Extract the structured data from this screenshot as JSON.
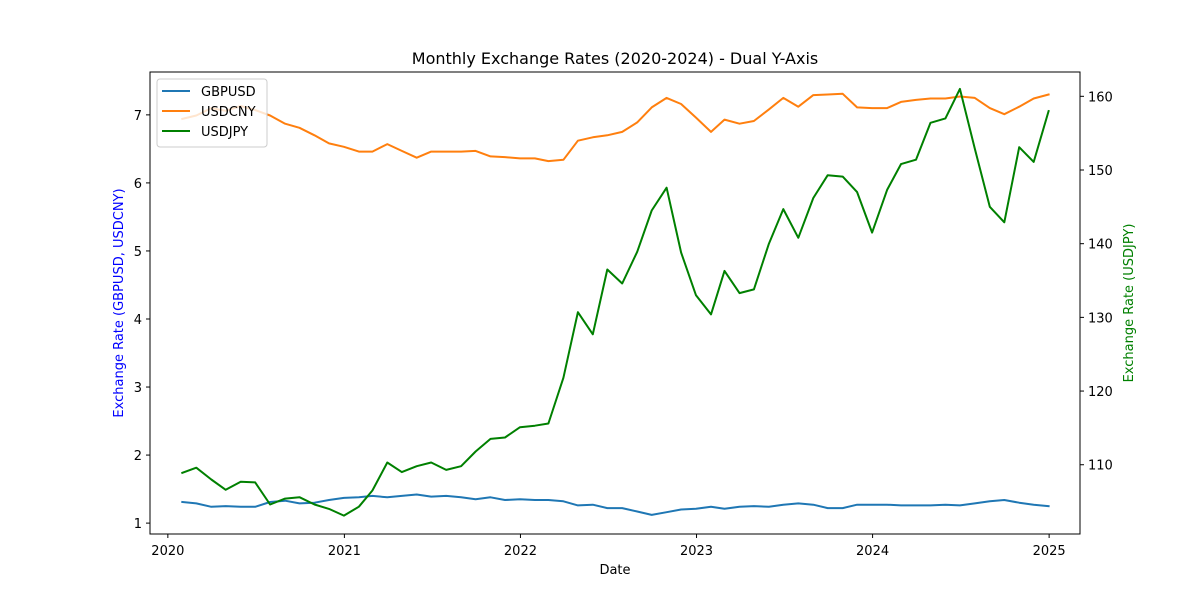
{
  "chart_data": {
    "type": "line",
    "title": "Monthly Exchange Rates (2020-2024) - Dual Y-Axis",
    "xlabel": "Date",
    "ylabel_left": "Exchange Rate (GBPUSD, USDCNY)",
    "ylabel_right": "Exchange Rate (USDJPY)",
    "ylabel_left_color": "#0000ff",
    "ylabel_right_color": "#008000",
    "x_ticks": [
      "2020",
      "2021",
      "2022",
      "2023",
      "2024",
      "2025"
    ],
    "y_left_ticks": [
      1,
      2,
      3,
      4,
      5,
      6,
      7
    ],
    "y_right_ticks": [
      110,
      120,
      130,
      140,
      150,
      160
    ],
    "y_left_lim": [
      0.84,
      7.63
    ],
    "y_right_lim": [
      100.6,
      163.3
    ],
    "legend_position": "top-left",
    "x": [
      "2020-01-31",
      "2020-02-29",
      "2020-03-31",
      "2020-04-30",
      "2020-05-31",
      "2020-06-30",
      "2020-07-31",
      "2020-08-31",
      "2020-09-30",
      "2020-10-31",
      "2020-11-30",
      "2020-12-31",
      "2021-01-31",
      "2021-02-28",
      "2021-03-31",
      "2021-04-30",
      "2021-05-31",
      "2021-06-30",
      "2021-07-31",
      "2021-08-31",
      "2021-09-30",
      "2021-10-31",
      "2021-11-30",
      "2021-12-31",
      "2022-01-31",
      "2022-02-28",
      "2022-03-31",
      "2022-04-30",
      "2022-05-31",
      "2022-06-30",
      "2022-07-31",
      "2022-08-31",
      "2022-09-30",
      "2022-10-31",
      "2022-11-30",
      "2022-12-31",
      "2023-01-31",
      "2023-02-28",
      "2023-03-31",
      "2023-04-30",
      "2023-05-31",
      "2023-06-30",
      "2023-07-31",
      "2023-08-31",
      "2023-09-30",
      "2023-10-31",
      "2023-11-30",
      "2023-12-31",
      "2024-01-31",
      "2024-02-29",
      "2024-03-31",
      "2024-04-30",
      "2024-05-31",
      "2024-06-30",
      "2024-07-31",
      "2024-08-31",
      "2024-09-30",
      "2024-10-31",
      "2024-11-30",
      "2024-12-31"
    ],
    "series": [
      {
        "name": "GBPUSD",
        "axis": "left",
        "color": "#1f77b4",
        "values": [
          1.31,
          1.29,
          1.24,
          1.25,
          1.24,
          1.24,
          1.31,
          1.33,
          1.29,
          1.3,
          1.34,
          1.37,
          1.38,
          1.4,
          1.38,
          1.4,
          1.42,
          1.39,
          1.4,
          1.38,
          1.35,
          1.38,
          1.34,
          1.35,
          1.34,
          1.34,
          1.32,
          1.26,
          1.27,
          1.22,
          1.22,
          1.17,
          1.12,
          1.16,
          1.2,
          1.21,
          1.24,
          1.21,
          1.24,
          1.25,
          1.24,
          1.27,
          1.29,
          1.27,
          1.22,
          1.22,
          1.27,
          1.27,
          1.27,
          1.26,
          1.26,
          1.26,
          1.27,
          1.26,
          1.29,
          1.32,
          1.34,
          1.3,
          1.27,
          1.25
        ]
      },
      {
        "name": "USDCNY",
        "axis": "left",
        "color": "#ff7f0e",
        "values": [
          6.94,
          6.99,
          7.1,
          7.06,
          7.13,
          7.07,
          6.99,
          6.87,
          6.81,
          6.7,
          6.58,
          6.53,
          6.46,
          6.46,
          6.57,
          6.47,
          6.37,
          6.46,
          6.46,
          6.46,
          6.47,
          6.39,
          6.38,
          6.36,
          6.36,
          6.32,
          6.34,
          6.62,
          6.67,
          6.7,
          6.75,
          6.89,
          7.11,
          7.25,
          7.16,
          6.96,
          6.75,
          6.93,
          6.87,
          6.91,
          7.08,
          7.25,
          7.12,
          7.29,
          7.3,
          7.31,
          7.11,
          7.1,
          7.1,
          7.19,
          7.22,
          7.24,
          7.24,
          7.27,
          7.25,
          7.1,
          7.01,
          7.12,
          7.24,
          7.3
        ]
      },
      {
        "name": "USDJPY",
        "axis": "right",
        "color": "#008000",
        "values": [
          108.9,
          109.6,
          108.0,
          106.6,
          107.7,
          107.6,
          104.6,
          105.4,
          105.6,
          104.6,
          104.0,
          103.1,
          104.3,
          106.5,
          110.3,
          109.0,
          109.8,
          110.3,
          109.3,
          109.8,
          111.8,
          113.5,
          113.7,
          115.1,
          115.3,
          115.6,
          121.8,
          130.7,
          127.7,
          136.5,
          134.6,
          138.9,
          144.5,
          147.6,
          138.8,
          133.0,
          130.4,
          136.3,
          133.3,
          133.8,
          140.0,
          144.7,
          140.8,
          146.2,
          149.3,
          149.1,
          147.0,
          141.5,
          147.3,
          150.8,
          151.4,
          156.4,
          157.0,
          161.0,
          152.9,
          145.0,
          142.9,
          153.1,
          151.1,
          158.0
        ]
      }
    ]
  }
}
